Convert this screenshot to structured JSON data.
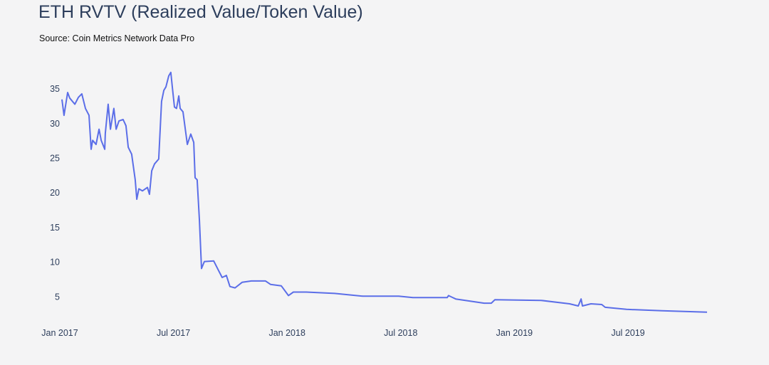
{
  "chart_data": {
    "type": "line",
    "title": "ETH RVTV (Realized Value/Token Value)",
    "subtitle": "Source: Coin Metrics Network Data Pro",
    "xlabel": "",
    "ylabel": "",
    "x_unit": "months since Jan 2017",
    "x_ticks": [
      {
        "value": 0,
        "label": "Jan 2017"
      },
      {
        "value": 6,
        "label": "Jul 2017"
      },
      {
        "value": 12,
        "label": "Jan 2018"
      },
      {
        "value": 18,
        "label": "Jul 2018"
      },
      {
        "value": 24,
        "label": "Jan 2019"
      },
      {
        "value": 30,
        "label": "Jul 2019"
      }
    ],
    "y_ticks": [
      {
        "value": 5,
        "label": "5"
      },
      {
        "value": 10,
        "label": "10"
      },
      {
        "value": 15,
        "label": "15"
      },
      {
        "value": 20,
        "label": "20"
      },
      {
        "value": 25,
        "label": "25"
      },
      {
        "value": 30,
        "label": "30"
      },
      {
        "value": 35,
        "label": "35"
      }
    ],
    "ylim": [
      0,
      38
    ],
    "grid": false,
    "color": "#5b6ee8",
    "series": [
      {
        "name": "ETH RVTV",
        "x": [
          0.15,
          0.26,
          0.45,
          0.56,
          0.83,
          1.02,
          1.2,
          1.39,
          1.58,
          1.69,
          1.77,
          1.95,
          2.11,
          2.22,
          2.41,
          2.44,
          2.59,
          2.71,
          2.89,
          3.01,
          3.16,
          3.38,
          3.53,
          3.65,
          3.83,
          4.02,
          4.1,
          4.21,
          4.4,
          4.66,
          4.77,
          4.89,
          5.04,
          5.26,
          5.41,
          5.53,
          5.64,
          5.79,
          5.9,
          5.98,
          6.09,
          6.2,
          6.32,
          6.39,
          6.54,
          6.77,
          6.95,
          7.11,
          7.18,
          7.29,
          7.41,
          7.52,
          7.67,
          8.16,
          8.42,
          8.61,
          8.83,
          9.02,
          9.29,
          9.66,
          10.15,
          10.9,
          11.17,
          11.73,
          12.11,
          12.37,
          13.05,
          14.55,
          16.05,
          17.93,
          18.68,
          20.49,
          20.56,
          20.94,
          22.44,
          22.82,
          23.01,
          25.45,
          26.95,
          27.41,
          27.56,
          27.63,
          28.08,
          28.65,
          28.83,
          29.96,
          31.84,
          34.21
        ],
        "values": [
          33.5,
          31.2,
          34.5,
          33.7,
          32.8,
          33.8,
          34.3,
          32.2,
          31.2,
          26.3,
          27.6,
          27.0,
          29.2,
          27.6,
          26.3,
          28.6,
          32.8,
          29.2,
          32.2,
          29.2,
          30.4,
          30.6,
          29.7,
          26.6,
          25.6,
          21.9,
          19.1,
          20.6,
          20.3,
          20.8,
          19.8,
          23.2,
          24.2,
          24.9,
          33.2,
          34.8,
          35.3,
          36.9,
          37.4,
          35.2,
          32.4,
          32.2,
          34.0,
          32.2,
          31.7,
          27.0,
          28.5,
          27.3,
          22.2,
          21.9,
          16.0,
          9.1,
          10.1,
          10.2,
          8.8,
          7.8,
          8.1,
          6.5,
          6.3,
          7.1,
          7.3,
          7.3,
          6.8,
          6.6,
          5.2,
          5.7,
          5.7,
          5.5,
          5.1,
          5.1,
          4.9,
          4.9,
          5.2,
          4.7,
          4.1,
          4.1,
          4.6,
          4.5,
          4.0,
          3.7,
          4.7,
          3.7,
          4.0,
          3.9,
          3.5,
          3.2,
          3.0,
          2.8
        ]
      }
    ]
  }
}
